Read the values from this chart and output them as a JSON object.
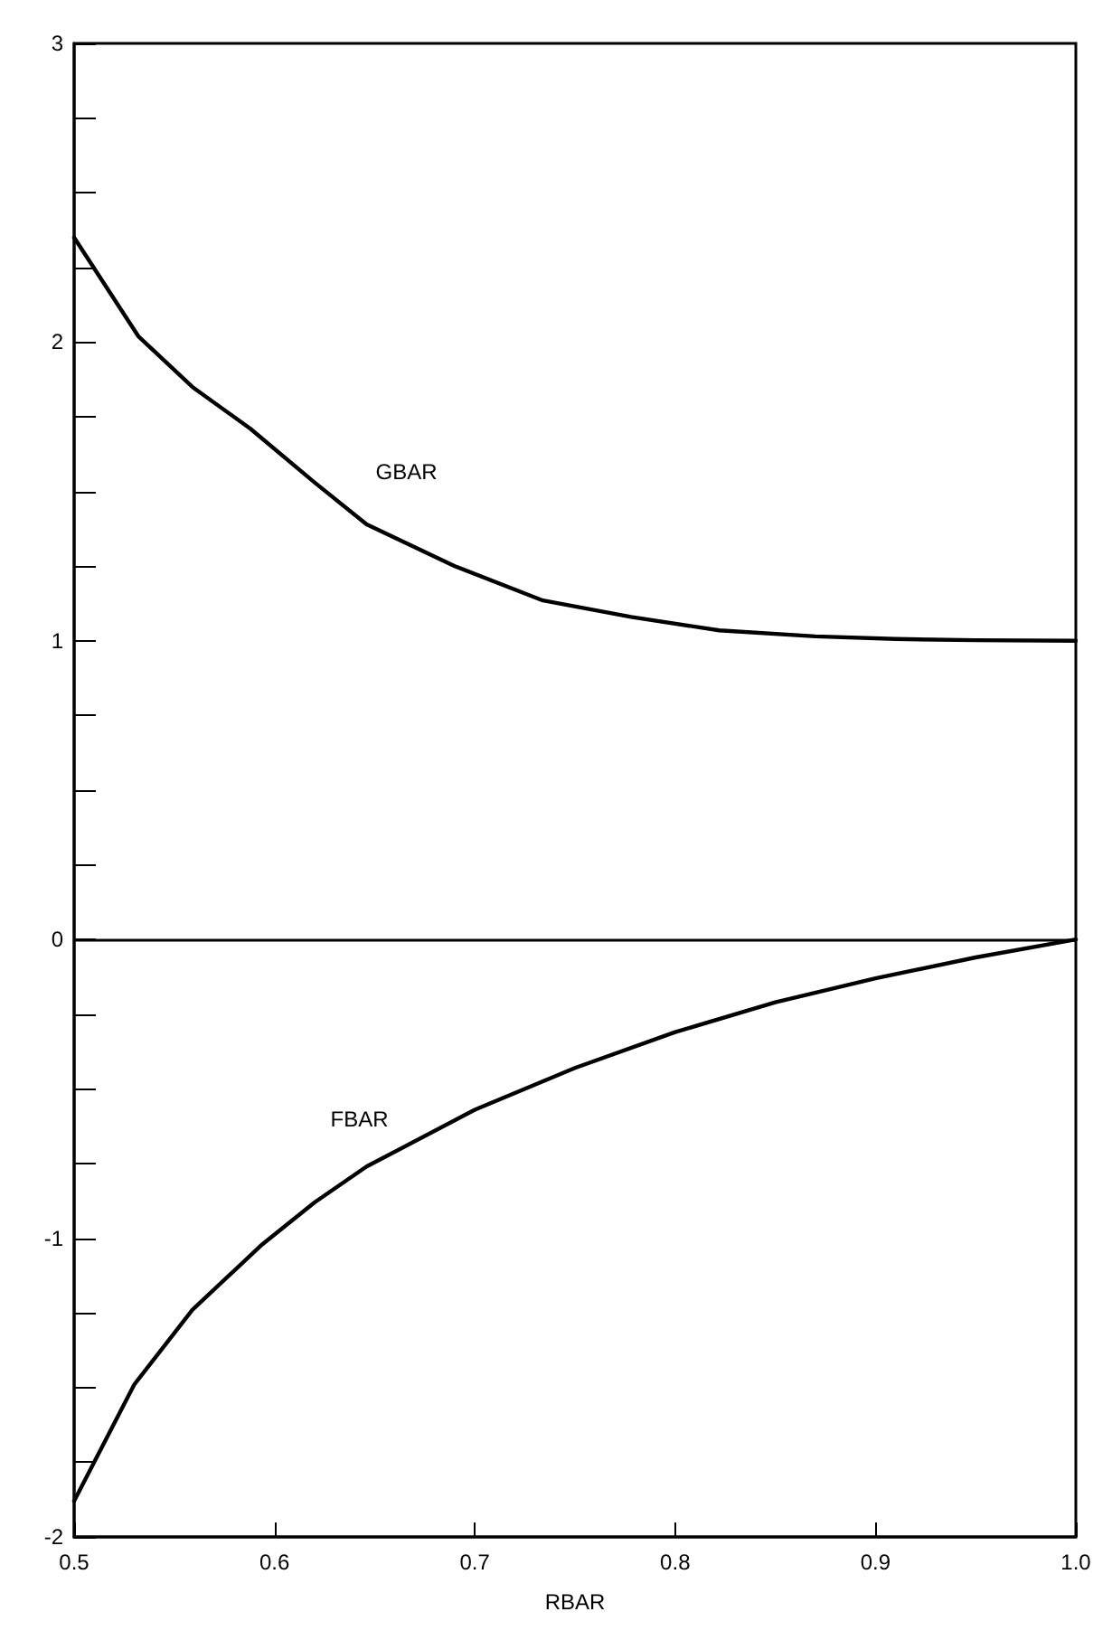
{
  "chart_data": {
    "type": "line",
    "xlabel": "RBAR",
    "xlim": [
      0.5,
      1.0
    ],
    "xticks": [
      0.5,
      0.6,
      0.7,
      0.8,
      0.9,
      {
        "value": 1.0,
        "label": "1.0"
      }
    ],
    "ylim": [
      -2,
      3
    ],
    "yticks": [
      -2,
      {
        "value": -1.75,
        "label": null
      },
      {
        "value": -1.5,
        "label": null
      },
      {
        "value": -1.25,
        "label": null
      },
      -1,
      {
        "value": -0.75,
        "label": null
      },
      {
        "value": -0.5,
        "label": null
      },
      {
        "value": -0.25,
        "label": null
      },
      0,
      {
        "value": 0.25,
        "label": null
      },
      {
        "value": 0.5,
        "label": null
      },
      {
        "value": 0.75,
        "label": null
      },
      1,
      {
        "value": 1.25,
        "label": null
      },
      {
        "value": 1.5,
        "label": null
      },
      {
        "value": 1.75,
        "label": null
      },
      2,
      {
        "value": 2.25,
        "label": null
      },
      {
        "value": 2.5,
        "label": null
      },
      {
        "value": 2.75,
        "label": null
      },
      3
    ],
    "grid": false,
    "legend": false,
    "marker": "none",
    "line_style": "solid",
    "ref_lines": [
      {
        "axis": "y",
        "value": 0,
        "color": "#000000"
      }
    ],
    "series": [
      {
        "name": "GBAR",
        "color": "#000000",
        "x": [
          0.5,
          0.532,
          0.559,
          0.588,
          0.62,
          0.646,
          0.69,
          0.734,
          0.778,
          0.822,
          0.87,
          0.91,
          0.95,
          1.0
        ],
        "values": [
          2.35,
          2.02,
          1.85,
          1.71,
          1.53,
          1.39,
          1.25,
          1.135,
          1.08,
          1.035,
          1.015,
          1.006,
          1.002,
          1.0
        ]
      },
      {
        "name": "FBAR",
        "color": "#000000",
        "x": [
          0.5,
          0.53,
          0.559,
          0.594,
          0.62,
          0.646,
          0.7,
          0.75,
          0.8,
          0.85,
          0.9,
          0.95,
          1.0
        ],
        "values": [
          -1.88,
          -1.49,
          -1.24,
          -1.02,
          -0.88,
          -0.76,
          -0.57,
          -0.43,
          -0.31,
          -0.21,
          -0.13,
          -0.06,
          0
        ]
      }
    ]
  }
}
